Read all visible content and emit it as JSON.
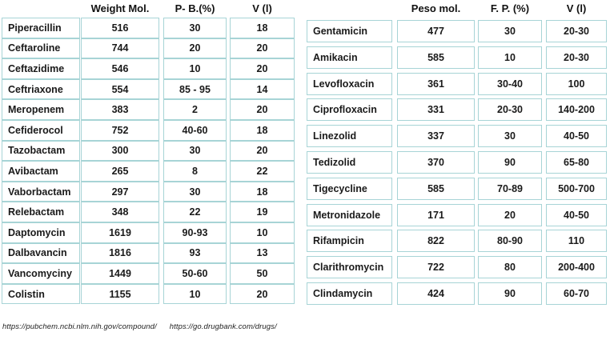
{
  "left_table": {
    "headers": [
      "Weight Mol.",
      "P- B.(%)",
      "V (l)"
    ],
    "rows": [
      {
        "name": "Piperacillin",
        "weight": "516",
        "pb": "30",
        "v": "18"
      },
      {
        "name": "Ceftaroline",
        "weight": "744",
        "pb": "20",
        "v": "20"
      },
      {
        "name": "Ceftazidime",
        "weight": "546",
        "pb": "10",
        "v": "20"
      },
      {
        "name": "Ceftriaxone",
        "weight": "554",
        "pb": "85 - 95",
        "v": "14"
      },
      {
        "name": "Meropenem",
        "weight": "383",
        "pb": "2",
        "v": "20"
      },
      {
        "name": "Cefiderocol",
        "weight": "752",
        "pb": "40-60",
        "v": "18"
      },
      {
        "name": "Tazobactam",
        "weight": "300",
        "pb": "30",
        "v": "20"
      },
      {
        "name": "Avibactam",
        "weight": "265",
        "pb": "8",
        "v": "22"
      },
      {
        "name": "Vaborbactam",
        "weight": "297",
        "pb": "30",
        "v": "18"
      },
      {
        "name": "Relebactam",
        "weight": "348",
        "pb": "22",
        "v": "19"
      },
      {
        "name": "Daptomycin",
        "weight": "1619",
        "pb": "90-93",
        "v": "10"
      },
      {
        "name": "Dalbavancin",
        "weight": "1816",
        "pb": "93",
        "v": "13"
      },
      {
        "name": "Vancomyciny",
        "weight": "1449",
        "pb": "50-60",
        "v": "50"
      },
      {
        "name": "Colistin",
        "weight": "1155",
        "pb": "10",
        "v": "20"
      }
    ]
  },
  "right_table": {
    "headers": [
      "Peso mol.",
      "F. P. (%)",
      "V (l)"
    ],
    "rows": [
      {
        "name": "Gentamicin",
        "weight": "477",
        "pb": "30",
        "v": "20-30"
      },
      {
        "name": "Amikacin",
        "weight": "585",
        "pb": "10",
        "v": "20-30"
      },
      {
        "name": "Levofloxacin",
        "weight": "361",
        "pb": "30-40",
        "v": "100"
      },
      {
        "name": "Ciprofloxacin",
        "weight": "331",
        "pb": "20-30",
        "v": "140-200"
      },
      {
        "name": "Linezolid",
        "weight": "337",
        "pb": "30",
        "v": "40-50"
      },
      {
        "name": "Tedizolid",
        "weight": "370",
        "pb": "90",
        "v": "65-80"
      },
      {
        "name": "Tigecycline",
        "weight": "585",
        "pb": "70-89",
        "v": "500-700"
      },
      {
        "name": "Metronidazole",
        "weight": "171",
        "pb": "20",
        "v": "40-50"
      },
      {
        "name": "Rifampicin",
        "weight": "822",
        "pb": "80-90",
        "v": "110"
      },
      {
        "name": "Clarithromycin",
        "weight": "722",
        "pb": "80",
        "v": "200-400"
      },
      {
        "name": "Clindamycin",
        "weight": "424",
        "pb": "90",
        "v": "60-70"
      }
    ]
  },
  "footer": {
    "link1": "https://pubchem.ncbi.nlm.nih.gov/compound/",
    "link2": "https://go.drugbank.com/drugs/"
  },
  "colors": {
    "cell_border": "#a7d4d6",
    "text": "#1a1a1a",
    "background": "#ffffff"
  }
}
